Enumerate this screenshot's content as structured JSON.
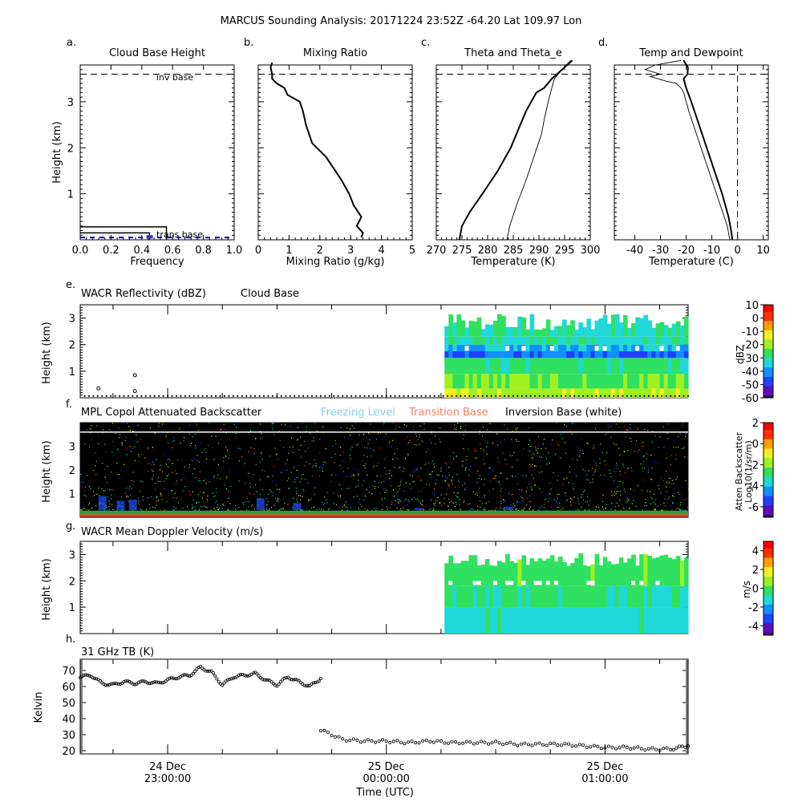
{
  "figure": {
    "title": "MARCUS Sounding Analysis: 20171224 23:52Z   -64.20 Lat  109.97 Lon"
  },
  "colors": {
    "freezing_level": "#87ceeb",
    "transition_base": "#f08060",
    "inversion_base": "#ffffff",
    "rainbow": [
      "#3d0066",
      "#5a10c0",
      "#2040ff",
      "#1090ff",
      "#20d8d8",
      "#30e060",
      "#a0f020",
      "#f0f020",
      "#ffa000",
      "#ff3000",
      "#ff0000"
    ]
  },
  "chart_data": [
    {
      "id": "a",
      "type": "bar",
      "panel_letter": "a.",
      "title": "Cloud Base Height",
      "xlabel": "Frequency",
      "ylabel": "Height (km)",
      "xlim": [
        0.0,
        1.0
      ],
      "ylim": [
        0.0,
        3.8
      ],
      "xticks": [
        "0.0",
        "0.2",
        "0.4",
        "0.6",
        "0.8",
        "1.0"
      ],
      "yticks": [
        "1",
        "2",
        "3"
      ],
      "series": [
        {
          "values": [
            {
              "height_km": 0.28,
              "frequency": 0.56
            },
            {
              "height_km": 0.15,
              "frequency": 0.45
            }
          ]
        }
      ],
      "annotations": [
        {
          "label": "inv base",
          "height_km": 3.6,
          "style": "dashed"
        },
        {
          "label": "trans base",
          "height_km": 0.05,
          "style": "dashed"
        }
      ]
    },
    {
      "id": "b",
      "type": "line",
      "panel_letter": "b.",
      "title": "Mixing Ratio",
      "xlabel": "Mixing Ratio (g/kg)",
      "xlim": [
        0,
        5
      ],
      "ylim": [
        0.0,
        3.8
      ],
      "xticks": [
        "0",
        "1",
        "2",
        "3",
        "4",
        "5"
      ],
      "inversion_base_km": 3.6,
      "series": [
        {
          "x": [
            3.35,
            3.4,
            3.2,
            3.35,
            3.1,
            2.95,
            2.7,
            2.45,
            2.2,
            1.75,
            1.55,
            1.45,
            1.35,
            0.95,
            0.85,
            0.6,
            0.45,
            0.45,
            0.4,
            0.45
          ],
          "y": [
            0.05,
            0.15,
            0.3,
            0.5,
            0.75,
            1.0,
            1.3,
            1.55,
            1.8,
            2.1,
            2.5,
            2.8,
            3.0,
            3.15,
            3.3,
            3.4,
            3.5,
            3.6,
            3.75,
            3.85
          ]
        }
      ]
    },
    {
      "id": "c",
      "type": "line",
      "panel_letter": "c.",
      "title": "Theta and Theta_e",
      "xlabel": "Temperature (K)",
      "xlim": [
        270,
        300
      ],
      "ylim": [
        0.0,
        3.8
      ],
      "xticks": [
        "270",
        "275",
        "280",
        "285",
        "290",
        "295",
        "300"
      ],
      "inversion_base_km": 3.6,
      "series": [
        {
          "x": [
            274.5,
            275,
            276.5,
            279,
            282,
            284.5,
            286,
            287.5,
            289.5,
            291,
            292.5,
            294.5,
            296.5
          ],
          "y": [
            0.0,
            0.3,
            0.6,
            1.0,
            1.5,
            2.0,
            2.4,
            2.8,
            3.2,
            3.3,
            3.5,
            3.7,
            3.9
          ]
        },
        {
          "x": [
            283.8,
            284.3,
            285.8,
            287.5,
            289,
            290.5,
            291,
            291.8,
            292.5,
            293,
            294.5,
            296.2
          ],
          "y": [
            0.0,
            0.3,
            0.8,
            1.3,
            1.8,
            2.3,
            2.6,
            3.0,
            3.3,
            3.5,
            3.7,
            3.9
          ]
        }
      ]
    },
    {
      "id": "d",
      "type": "line",
      "panel_letter": "d.",
      "title": "Temp and Dewpoint",
      "xlabel": "Temperature (C)",
      "xlim": [
        -48,
        12
      ],
      "ylim": [
        0.0,
        3.8
      ],
      "xticks": [
        "-40",
        "-30",
        "-20",
        "-10",
        "0",
        "10"
      ],
      "inversion_base_km": 3.6,
      "zero_line": 0,
      "series": [
        {
          "x": [
            -2,
            -2.5,
            -3.5,
            -6,
            -9,
            -12,
            -15,
            -18,
            -20,
            -21,
            -19.5,
            -19.3,
            -20.5,
            -21
          ],
          "y": [
            0.0,
            0.2,
            0.5,
            1.0,
            1.5,
            2.0,
            2.5,
            3.0,
            3.3,
            3.5,
            3.6,
            3.75,
            3.85,
            3.9
          ]
        },
        {
          "x": [
            -3,
            -4,
            -7,
            -10,
            -13,
            -16,
            -19,
            -21,
            -22,
            -24,
            -28,
            -34,
            -30,
            -36,
            -32,
            -22
          ],
          "y": [
            0.0,
            0.3,
            0.8,
            1.3,
            1.8,
            2.3,
            2.8,
            3.2,
            3.3,
            3.4,
            3.45,
            3.55,
            3.6,
            3.7,
            3.8,
            3.9
          ]
        }
      ]
    },
    {
      "id": "e",
      "type": "heatmap",
      "panel_letter": "e.",
      "title": "WACR Reflectivity (dBZ)",
      "title2": "Cloud Base",
      "ylabel": "Height (km)",
      "ylim": [
        0,
        3.5
      ],
      "yticks": [
        "1",
        "2",
        "3"
      ],
      "colorbar_label": "dBZ",
      "colorbar_range": [
        -60,
        10
      ],
      "colorbar_ticks": [
        "10",
        "0",
        "-10",
        "-20",
        "-30",
        "-40",
        "-50",
        "-60"
      ],
      "data_start_fraction": 0.6,
      "cloud_base_points": [
        {
          "t": 0.03,
          "h": 0.35
        },
        {
          "t": 0.09,
          "h": 0.85
        },
        {
          "t": 0.09,
          "h": 0.25
        }
      ]
    },
    {
      "id": "f",
      "type": "heatmap",
      "panel_letter": "f.",
      "title": "MPL Copol Attenuated Backscatter",
      "legend": [
        "Freezing Level",
        "Transition Base",
        "Inversion Base (white)"
      ],
      "ylabel": "Height (km)",
      "ylim": [
        0,
        4.0
      ],
      "yticks": [
        "1",
        "2",
        "3"
      ],
      "colorbar_label": "Atten Backscatter",
      "colorbar_label2": "Log10(1/sr/m)",
      "colorbar_range": [
        -7,
        2
      ],
      "colorbar_ticks": [
        "2",
        "0",
        "-2",
        "-4",
        "-6"
      ],
      "inversion_base_km": 3.6
    },
    {
      "id": "g",
      "type": "heatmap",
      "panel_letter": "g.",
      "title": "WACR Mean Doppler Velocity (m/s)",
      "ylabel": "Height (km)",
      "ylim": [
        0,
        3.5
      ],
      "yticks": [
        "1",
        "2",
        "3"
      ],
      "colorbar_label": "m/s",
      "colorbar_range": [
        -5,
        5
      ],
      "colorbar_ticks": [
        "4",
        "2",
        "0",
        "-2",
        "-4"
      ],
      "data_start_fraction": 0.6
    },
    {
      "id": "h",
      "type": "scatter",
      "panel_letter": "h.",
      "title": "31 GHz TB (K)",
      "ylabel": "Kelvin",
      "xlabel": "Time (UTC)",
      "ylim": [
        18,
        77
      ],
      "yticks": [
        "20",
        "30",
        "40",
        "50",
        "60",
        "70"
      ],
      "xlim_hours": [
        22.6,
        25.38
      ],
      "xtick_labels": [
        {
          "hours": 23.0,
          "line1": "24 Dec",
          "line2": "23:00:00"
        },
        {
          "hours": 24.0,
          "line1": "25 Dec",
          "line2": "00:00:00"
        },
        {
          "hours": 25.0,
          "line1": "25 Dec",
          "line2": "01:00:00"
        }
      ],
      "series": [
        {
          "x_hours": [
            22.6,
            22.65,
            22.7,
            22.75,
            22.8,
            22.85,
            22.9,
            22.95,
            23.0,
            23.05,
            23.1,
            23.15,
            23.2,
            23.25,
            23.3,
            23.35,
            23.4,
            23.45,
            23.5,
            23.55,
            23.6,
            23.65,
            23.7
          ],
          "values": [
            66,
            67,
            62,
            61,
            63,
            62,
            63,
            62,
            64,
            66,
            67,
            72,
            69,
            61,
            66,
            67,
            68,
            64,
            61,
            66,
            63,
            60,
            65
          ]
        },
        {
          "x_hours": [
            23.7,
            23.8,
            23.9,
            24.0,
            24.1,
            24.2,
            24.3,
            24.4,
            24.5,
            24.6,
            24.7,
            24.8,
            24.9,
            25.0,
            25.1,
            25.2,
            25.3,
            25.38
          ],
          "values": [
            33,
            27,
            26,
            26,
            25,
            26,
            25,
            25,
            25,
            24,
            24,
            24,
            23,
            22,
            22,
            21,
            21,
            23
          ]
        }
      ]
    }
  ]
}
